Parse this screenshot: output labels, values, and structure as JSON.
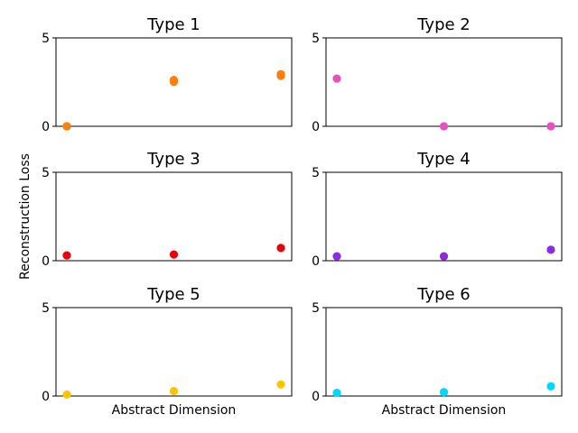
{
  "figure": {
    "ylabel": "Reconstruction Loss"
  },
  "chart_data": [
    {
      "type": "scatter",
      "title": "Type 1",
      "xlabel": "",
      "ylim": [
        0,
        5
      ],
      "yticks": [
        "0",
        "5"
      ],
      "x": [
        0,
        1,
        2
      ],
      "series": [
        {
          "color": "#ff7f0e",
          "values": [
            0.0,
            2.62,
            2.95
          ]
        },
        {
          "color": "#ff7f0e",
          "values": [
            0.0,
            2.52,
            2.85
          ]
        }
      ]
    },
    {
      "type": "scatter",
      "title": "Type 2",
      "xlabel": "",
      "ylim": [
        0,
        5
      ],
      "yticks": [
        "0",
        "5"
      ],
      "x": [
        0,
        1,
        2
      ],
      "series": [
        {
          "color": "#e84fbf",
          "values": [
            2.7,
            0.0,
            0.0
          ]
        }
      ]
    },
    {
      "type": "scatter",
      "title": "Type 3",
      "xlabel": "",
      "ylim": [
        0,
        5
      ],
      "yticks": [
        "0",
        "5"
      ],
      "x": [
        0,
        1,
        2
      ],
      "series": [
        {
          "color": "#e8000b",
          "values": [
            0.3,
            0.35,
            0.72
          ]
        }
      ]
    },
    {
      "type": "scatter",
      "title": "Type 4",
      "xlabel": "",
      "ylim": [
        0,
        5
      ],
      "yticks": [
        "0",
        "5"
      ],
      "x": [
        0,
        1,
        2
      ],
      "series": [
        {
          "color": "#8b2be2",
          "values": [
            0.25,
            0.25,
            0.62
          ]
        }
      ]
    },
    {
      "type": "scatter",
      "title": "Type 5",
      "xlabel": "Abstract Dimension",
      "ylim": [
        0,
        5
      ],
      "yticks": [
        "0",
        "5"
      ],
      "x": [
        0,
        1,
        2
      ],
      "series": [
        {
          "color": "#ffc400",
          "values": [
            0.08,
            0.28,
            0.65
          ]
        }
      ]
    },
    {
      "type": "scatter",
      "title": "Type 6",
      "xlabel": "Abstract Dimension",
      "ylim": [
        0,
        5
      ],
      "yticks": [
        "0",
        "5"
      ],
      "x": [
        0,
        1,
        2
      ],
      "series": [
        {
          "color": "#00d7ff",
          "values": [
            0.18,
            0.22,
            0.55
          ]
        }
      ]
    }
  ]
}
